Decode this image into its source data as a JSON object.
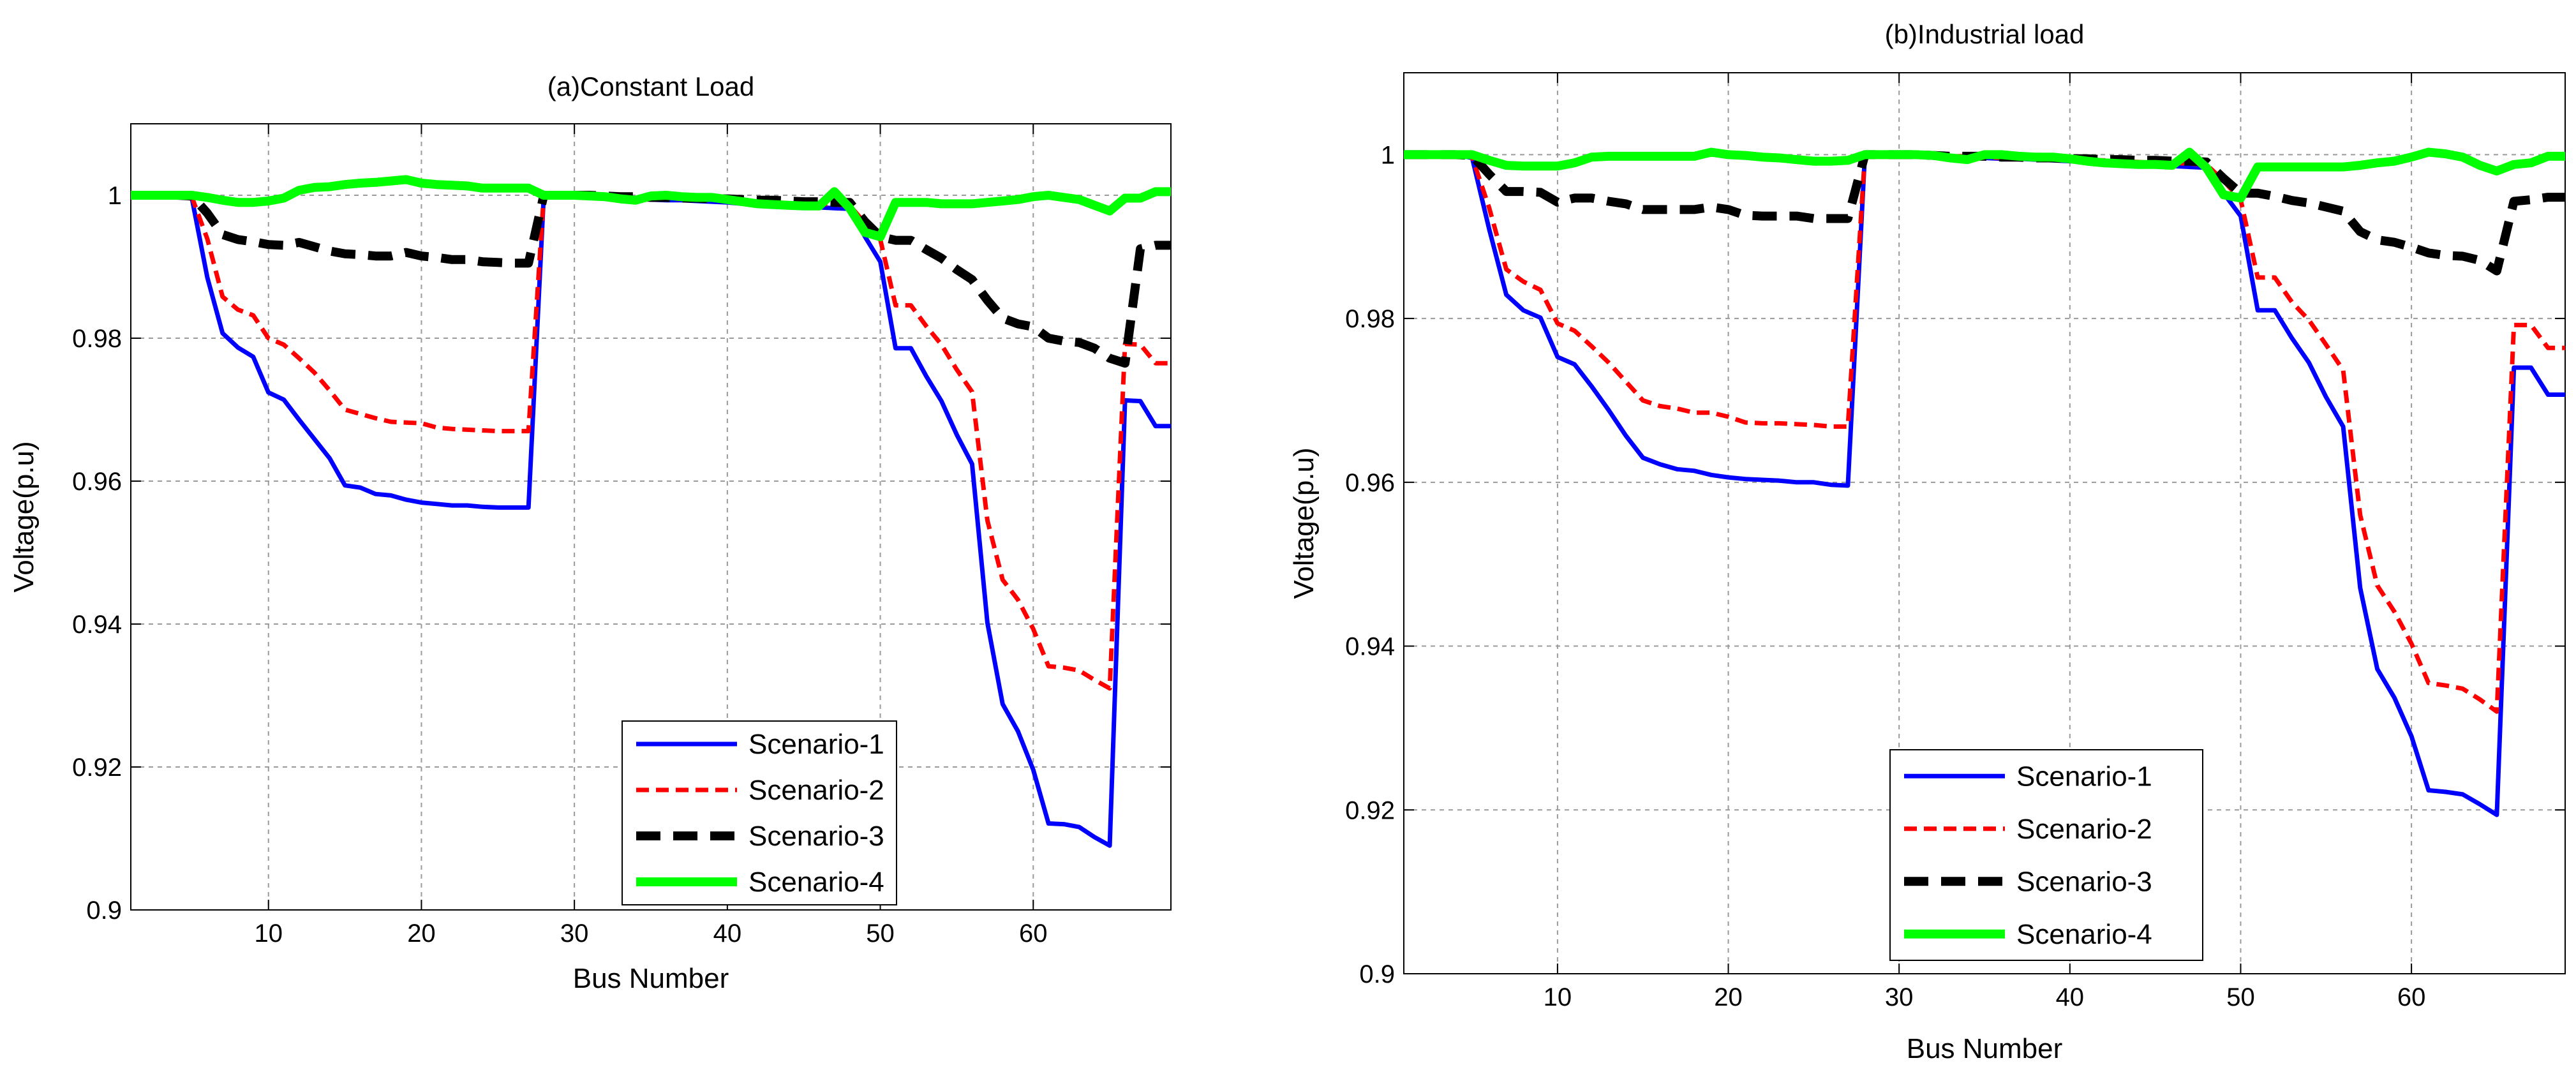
{
  "figure": {
    "series_styles": [
      {
        "name": "Scenario-1",
        "color": "#0000ff",
        "dash": "solid",
        "weight": "medium"
      },
      {
        "name": "Scenario-2",
        "color": "#ff0000",
        "dash": "dashed",
        "weight": "medium"
      },
      {
        "name": "Scenario-3",
        "color": "#000000",
        "dash": "dashed",
        "weight": "heavy"
      },
      {
        "name": "Scenario-4",
        "color": "#00ff00",
        "dash": "solid",
        "weight": "heavy"
      }
    ]
  },
  "chart_data": [
    {
      "type": "line",
      "title": "(a)Constant Load",
      "xlabel": "Bus Number",
      "ylabel": "Voltage(p.u)",
      "xlim": [
        1,
        69
      ],
      "ylim": [
        0.9,
        1.01
      ],
      "xticks": [
        10,
        20,
        30,
        40,
        50,
        60
      ],
      "yticks": [
        0.9,
        0.92,
        0.94,
        0.96,
        0.98,
        1
      ],
      "ytick_labels": [
        "0.9",
        "0.92",
        "0.94",
        "0.96",
        "0.98",
        "1"
      ],
      "grid": true,
      "legend_position": "bottom-right",
      "x": [
        1,
        2,
        3,
        4,
        5,
        6,
        7,
        8,
        9,
        10,
        11,
        12,
        13,
        14,
        15,
        16,
        17,
        18,
        19,
        20,
        21,
        22,
        23,
        24,
        25,
        26,
        27,
        28,
        29,
        30,
        31,
        32,
        33,
        34,
        35,
        36,
        37,
        38,
        39,
        40,
        41,
        42,
        43,
        44,
        45,
        46,
        47,
        48,
        49,
        50,
        51,
        52,
        53,
        54,
        55,
        56,
        57,
        58,
        59,
        60,
        61,
        62,
        63,
        64,
        65,
        66,
        67,
        68,
        69
      ],
      "series": [
        {
          "name": "Scenario-1",
          "values": [
            1,
            1,
            1,
            1,
            0.9995,
            0.9885,
            0.9807,
            0.9787,
            0.9774,
            0.9724,
            0.9714,
            0.9686,
            0.9659,
            0.9632,
            0.9594,
            0.9591,
            0.9582,
            0.958,
            0.9574,
            0.957,
            0.9568,
            0.9566,
            0.9566,
            0.9564,
            0.9563,
            0.9563,
            0.9563,
            1,
            1,
            1,
            1,
            0.9999,
            0.9997,
            0.9996,
            0.9994,
            0.9993,
            0.9993,
            0.9992,
            0.9991,
            0.999,
            0.9988,
            0.9987,
            0.9986,
            0.9985,
            0.9984,
            0.9983,
            0.9982,
            0.9981,
            0.9942,
            0.9907,
            0.9786,
            0.9786,
            0.9747,
            0.9712,
            0.9665,
            0.9624,
            0.9402,
            0.9288,
            0.925,
            0.9196,
            0.9121,
            0.912,
            0.9116,
            0.9102,
            0.909,
            0.9713,
            0.9712,
            0.9677,
            0.9677
          ]
        },
        {
          "name": "Scenario-2",
          "values": [
            1,
            1,
            1,
            1,
            0.9997,
            0.9939,
            0.9858,
            0.984,
            0.9832,
            0.98,
            0.9791,
            0.9772,
            0.9752,
            0.9727,
            0.97,
            0.9694,
            0.9688,
            0.9683,
            0.9682,
            0.9681,
            0.9675,
            0.9673,
            0.9672,
            0.9671,
            0.967,
            0.967,
            0.967,
            1,
            1,
            1,
            1,
            0.9999,
            0.9998,
            0.9997,
            0.9996,
            0.9995,
            0.9995,
            0.9994,
            0.9994,
            0.9993,
            0.9992,
            0.9991,
            0.999,
            0.9989,
            0.9988,
            0.9988,
            0.9987,
            0.9986,
            0.9961,
            0.9938,
            0.9846,
            0.9846,
            0.9817,
            0.9791,
            0.9756,
            0.9725,
            0.9545,
            0.9462,
            0.9434,
            0.9393,
            0.9341,
            0.9339,
            0.9335,
            0.9322,
            0.931,
            0.9792,
            0.9791,
            0.9765,
            0.9765
          ]
        },
        {
          "name": "Scenario-3",
          "values": [
            1,
            1,
            1,
            1,
            0.9999,
            0.9975,
            0.9945,
            0.9938,
            0.9935,
            0.9931,
            0.993,
            0.9934,
            0.9928,
            0.9922,
            0.9918,
            0.9917,
            0.9915,
            0.9915,
            0.992,
            0.9915,
            0.9913,
            0.991,
            0.991,
            0.9907,
            0.9906,
            0.9905,
            0.9905,
            1,
            1,
            1,
            1,
            0.9999,
            0.9998,
            0.9998,
            0.9997,
            0.9997,
            0.9996,
            0.9996,
            0.9995,
            0.9995,
            0.9994,
            0.9993,
            0.9993,
            0.9992,
            0.9991,
            0.9991,
            0.999,
            0.999,
            0.9963,
            0.9942,
            0.9937,
            0.9937,
            0.9924,
            0.9912,
            0.9896,
            0.9882,
            0.9853,
            0.9828,
            0.982,
            0.9816,
            0.98,
            0.9796,
            0.9794,
            0.9786,
            0.9772,
            0.9765,
            0.9925,
            0.993,
            0.993
          ]
        },
        {
          "name": "Scenario-4",
          "values": [
            1,
            1,
            1,
            1,
            1,
            0.9997,
            0.9993,
            0.999,
            0.999,
            0.9992,
            0.9996,
            1.0007,
            1.0011,
            1.0012,
            1.0015,
            1.0017,
            1.0018,
            1.002,
            1.0022,
            1.0017,
            1.0015,
            1.0014,
            1.0013,
            1.001,
            1.001,
            1.001,
            1.001,
            1,
            1,
            1,
            0.9999,
            0.9998,
            0.9995,
            0.9993,
            0.9999,
            1,
            0.9998,
            0.9997,
            0.9997,
            0.9994,
            0.9991,
            0.9988,
            0.9987,
            0.9986,
            0.9985,
            0.9985,
            1.0005,
            0.9982,
            0.9948,
            0.9942,
            0.999,
            0.999,
            0.999,
            0.9988,
            0.9988,
            0.9988,
            0.999,
            0.9992,
            0.9994,
            0.9998,
            1,
            0.9997,
            0.9994,
            0.9986,
            0.9978,
            0.9996,
            0.9996,
            1.0005,
            1.0005
          ]
        }
      ]
    },
    {
      "type": "line",
      "title": "(b)Industrial load",
      "xlabel": "Bus Number",
      "ylabel": "Voltage(p.u)",
      "xlim": [
        1,
        69
      ],
      "ylim": [
        0.9,
        1.01
      ],
      "xticks": [
        10,
        20,
        30,
        40,
        50,
        60
      ],
      "yticks": [
        0.9,
        0.92,
        0.94,
        0.96,
        0.98,
        1
      ],
      "ytick_labels": [
        "0.9",
        "0.92",
        "0.94",
        "0.96",
        "0.98",
        "1"
      ],
      "grid": true,
      "legend_position": "bottom-right",
      "x": [
        1,
        2,
        3,
        4,
        5,
        6,
        7,
        8,
        9,
        10,
        11,
        12,
        13,
        14,
        15,
        16,
        17,
        18,
        19,
        20,
        21,
        22,
        23,
        24,
        25,
        26,
        27,
        28,
        29,
        30,
        31,
        32,
        33,
        34,
        35,
        36,
        37,
        38,
        39,
        40,
        41,
        42,
        43,
        44,
        45,
        46,
        47,
        48,
        49,
        50,
        51,
        52,
        53,
        54,
        55,
        56,
        57,
        58,
        59,
        60,
        61,
        62,
        63,
        64,
        65,
        66,
        67,
        68,
        69
      ],
      "series": [
        {
          "name": "Scenario-1",
          "values": [
            1,
            1,
            1,
            1,
            0.9996,
            0.9909,
            0.9829,
            0.981,
            0.9801,
            0.9753,
            0.9744,
            0.9717,
            0.9688,
            0.9657,
            0.963,
            0.9622,
            0.9616,
            0.9614,
            0.9609,
            0.9606,
            0.9604,
            0.9603,
            0.9602,
            0.96,
            0.96,
            0.9597,
            0.9596,
            1,
            1,
            1,
            1,
            0.9999,
            0.9998,
            0.9997,
            0.9996,
            0.9995,
            0.9995,
            0.9994,
            0.9993,
            0.9992,
            0.9991,
            0.999,
            0.9989,
            0.9988,
            0.9987,
            0.9986,
            0.9985,
            0.9984,
            0.9953,
            0.9925,
            0.981,
            0.981,
            0.9776,
            0.9746,
            0.9704,
            0.9668,
            0.9471,
            0.9372,
            0.9337,
            0.929,
            0.9224,
            0.9222,
            0.9219,
            0.9207,
            0.9194,
            0.974,
            0.974,
            0.9707,
            0.9707
          ]
        },
        {
          "name": "Scenario-2",
          "values": [
            1,
            1,
            1,
            1,
            0.9997,
            0.9935,
            0.986,
            0.9845,
            0.9835,
            0.9794,
            0.9785,
            0.9766,
            0.9746,
            0.9723,
            0.97,
            0.9693,
            0.969,
            0.9685,
            0.9685,
            0.968,
            0.9673,
            0.9672,
            0.9672,
            0.9671,
            0.967,
            0.9668,
            0.9668,
            1,
            1,
            1,
            1,
            0.9999,
            0.9998,
            0.9998,
            0.9997,
            0.9996,
            0.9996,
            0.9995,
            0.9995,
            0.9994,
            0.9993,
            0.9993,
            0.9992,
            0.9991,
            0.999,
            0.999,
            0.9989,
            0.9988,
            0.9968,
            0.9945,
            0.985,
            0.985,
            0.982,
            0.9798,
            0.9768,
            0.9737,
            0.956,
            0.9474,
            0.9442,
            0.9403,
            0.9355,
            0.9352,
            0.9348,
            0.9335,
            0.932,
            0.9792,
            0.9792,
            0.9764,
            0.9764
          ]
        },
        {
          "name": "Scenario-3",
          "values": [
            1,
            1,
            1,
            1,
            0.9999,
            0.9976,
            0.9955,
            0.9955,
            0.9954,
            0.9942,
            0.9947,
            0.9947,
            0.9943,
            0.994,
            0.9933,
            0.9933,
            0.9933,
            0.9933,
            0.9936,
            0.9933,
            0.9926,
            0.9925,
            0.9925,
            0.9925,
            0.9922,
            0.9922,
            0.9922,
            1,
            1,
            1,
            1,
            0.9999,
            0.9998,
            0.9998,
            0.9998,
            0.9997,
            0.9997,
            0.9996,
            0.9996,
            0.9995,
            0.9995,
            0.9994,
            0.9994,
            0.9993,
            0.9993,
            0.9992,
            0.9992,
            0.9991,
            0.9971,
            0.9953,
            0.9953,
            0.9949,
            0.9944,
            0.9941,
            0.9936,
            0.9931,
            0.9906,
            0.9896,
            0.9893,
            0.9887,
            0.988,
            0.9877,
            0.9876,
            0.9871,
            0.9858,
            0.9943,
            0.9945,
            0.9948,
            0.9948
          ]
        },
        {
          "name": "Scenario-4",
          "values": [
            1,
            1,
            1,
            1,
            1,
            0.9993,
            0.9987,
            0.9986,
            0.9986,
            0.9986,
            0.999,
            0.9997,
            0.9998,
            0.9998,
            0.9998,
            0.9998,
            0.9998,
            0.9998,
            1.0003,
            1,
            0.9999,
            0.9997,
            0.9996,
            0.9994,
            0.9992,
            0.9992,
            0.9993,
            1,
            1,
            1,
            1,
            0.9999,
            0.9996,
            0.9994,
            1,
            1,
            0.9998,
            0.9997,
            0.9997,
            0.9995,
            0.9992,
            0.999,
            0.9989,
            0.9988,
            0.9988,
            0.9987,
            1.0003,
            0.9984,
            0.9951,
            0.9947,
            0.9985,
            0.9985,
            0.9985,
            0.9985,
            0.9985,
            0.9985,
            0.9987,
            0.999,
            0.9992,
            0.9997,
            1.0003,
            1.0001,
            0.9997,
            0.9987,
            0.998,
            0.9988,
            0.999,
            0.9998,
            0.9998
          ]
        }
      ]
    }
  ]
}
